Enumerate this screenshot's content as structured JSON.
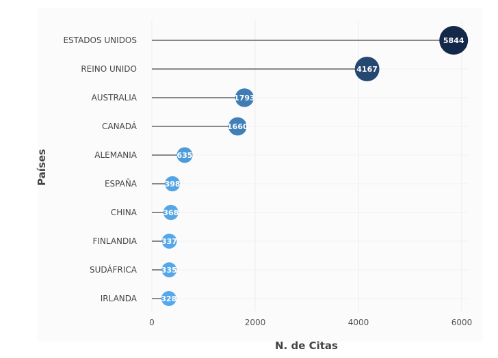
{
  "chart_data": {
    "type": "lollipop",
    "xlabel": "N. de Citas",
    "ylabel": "Países",
    "xlim": [
      0,
      6000
    ],
    "xticks": [
      0,
      2000,
      4000,
      6000
    ],
    "grid": true,
    "categories": [
      "ESTADOS UNIDOS",
      "REINO UNIDO",
      "AUSTRALIA",
      "CANADÁ",
      "ALEMANIA",
      "ESPAÑA",
      "CHINA",
      "FINLANDIA",
      "SUDÁFRICA",
      "IRLANDA"
    ],
    "values": [
      5844,
      4167,
      1793,
      1660,
      635,
      398,
      368,
      337,
      335,
      328
    ],
    "colors": {
      "low": "#56a8ea",
      "high": "#14284a",
      "stem": "#888888",
      "panel": "#fbfbfb",
      "grid": "#eeeeee"
    }
  }
}
